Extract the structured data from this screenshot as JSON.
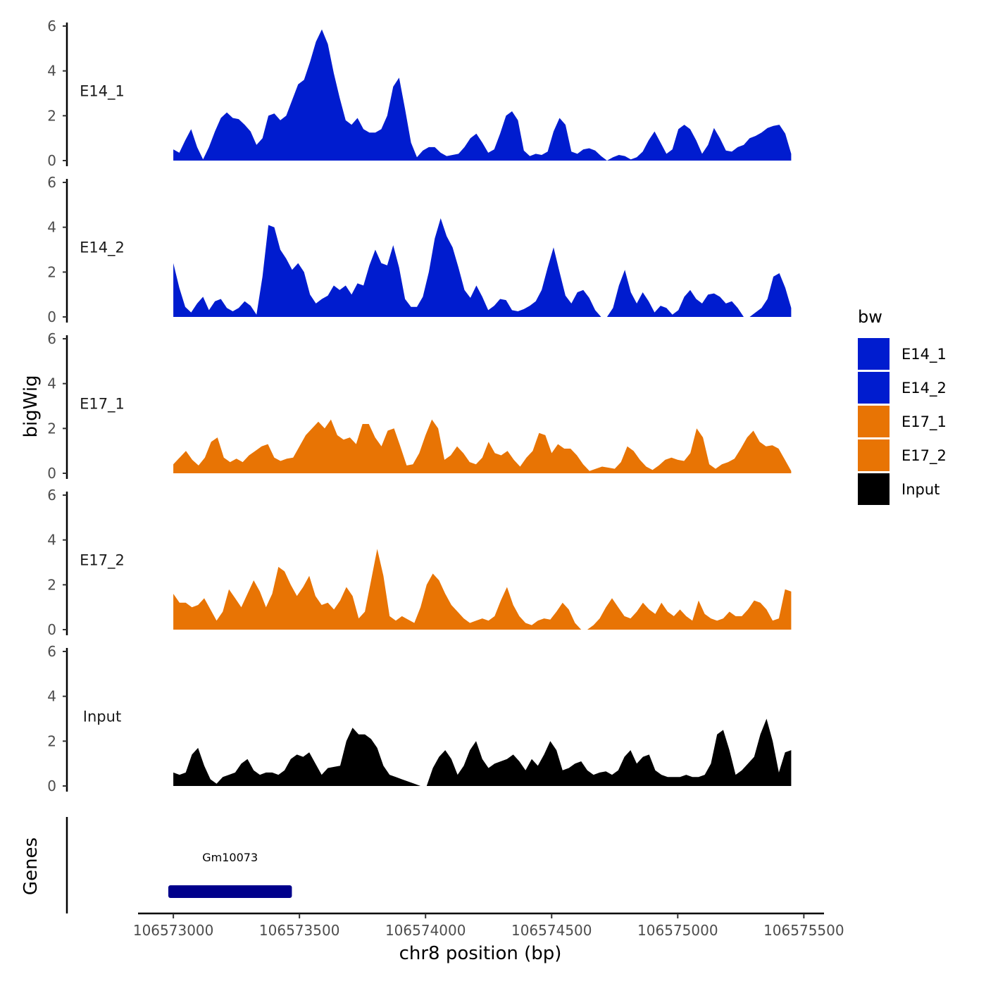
{
  "chart_data": {
    "type": "area",
    "ylabel": "bigWig",
    "xlabel": "chr8 position (bp)",
    "genes_label": "Genes",
    "xlim": [
      106572860,
      106575580
    ],
    "ylim": [
      0,
      6
    ],
    "y_ticks": [
      "0",
      "2",
      "4",
      "6"
    ],
    "x_ticks": [
      {
        "value": 106573000,
        "label": "106573000"
      },
      {
        "value": 106573500,
        "label": "106573500"
      },
      {
        "value": 106574000,
        "label": "106574000"
      },
      {
        "value": 106574500,
        "label": "106574500"
      },
      {
        "value": 106575000,
        "label": "106575000"
      },
      {
        "value": 106575500,
        "label": "106575500"
      }
    ],
    "legend": {
      "title": "bw",
      "entries": [
        {
          "name": "E14_1",
          "color": "#001ccf"
        },
        {
          "name": "E14_2",
          "color": "#001ccf"
        },
        {
          "name": "E17_1",
          "color": "#e87404"
        },
        {
          "name": "E17_2",
          "color": "#e87404"
        },
        {
          "name": "Input",
          "color": "#000000"
        }
      ]
    },
    "series": [
      {
        "name": "E14_1",
        "label": "E14_1",
        "color": "#001ccf",
        "x0": 106573000,
        "x1": 106575450,
        "values": [
          0.5,
          0.35,
          0.9,
          1.4,
          0.6,
          0.05,
          0.6,
          1.3,
          1.9,
          2.15,
          1.9,
          1.85,
          1.6,
          1.3,
          0.7,
          1.0,
          2.0,
          2.1,
          1.8,
          2.0,
          2.7,
          3.4,
          3.6,
          4.4,
          5.3,
          5.85,
          5.2,
          3.9,
          2.8,
          1.8,
          1.6,
          1.9,
          1.4,
          1.25,
          1.25,
          1.4,
          2.0,
          3.3,
          3.7,
          2.3,
          0.8,
          0.15,
          0.45,
          0.6,
          0.6,
          0.35,
          0.2,
          0.25,
          0.3,
          0.6,
          1.0,
          1.2,
          0.8,
          0.35,
          0.5,
          1.2,
          2.0,
          2.2,
          1.8,
          0.45,
          0.2,
          0.3,
          0.25,
          0.4,
          1.3,
          1.9,
          1.6,
          0.4,
          0.3,
          0.5,
          0.55,
          0.45,
          0.2,
          0,
          0.15,
          0.25,
          0.2,
          0.05,
          0.15,
          0.4,
          0.9,
          1.3,
          0.8,
          0.3,
          0.5,
          1.4,
          1.6,
          1.4,
          0.9,
          0.3,
          0.7,
          1.45,
          1.0,
          0.45,
          0.4,
          0.6,
          0.7,
          1.0,
          1.1,
          1.25,
          1.45,
          1.55,
          1.6,
          1.2,
          0.3
        ]
      },
      {
        "name": "E14_2",
        "label": "E14_2",
        "color": "#001ccf",
        "x0": 106573000,
        "x1": 106575450,
        "values": [
          2.4,
          1.3,
          0.45,
          0.2,
          0.6,
          0.9,
          0.3,
          0.7,
          0.8,
          0.4,
          0.25,
          0.4,
          0.7,
          0.5,
          0.1,
          1.8,
          4.1,
          4.0,
          3.0,
          2.6,
          2.1,
          2.4,
          2.0,
          1.0,
          0.6,
          0.8,
          0.95,
          1.4,
          1.2,
          1.4,
          1.0,
          1.5,
          1.4,
          2.3,
          3.0,
          2.4,
          2.3,
          3.2,
          2.2,
          0.8,
          0.45,
          0.45,
          0.9,
          2.0,
          3.5,
          4.4,
          3.6,
          3.1,
          2.2,
          1.2,
          0.85,
          1.4,
          0.9,
          0.3,
          0.5,
          0.8,
          0.75,
          0.3,
          0.25,
          0.35,
          0.5,
          0.7,
          1.2,
          2.2,
          3.1,
          2.0,
          0.95,
          0.6,
          1.1,
          1.2,
          0.85,
          0.3,
          0,
          0,
          0.4,
          1.4,
          2.1,
          1.1,
          0.6,
          1.1,
          0.7,
          0.2,
          0.5,
          0.4,
          0.1,
          0.3,
          0.9,
          1.2,
          0.8,
          0.6,
          1.0,
          1.05,
          0.9,
          0.6,
          0.7,
          0.4,
          0,
          0,
          0.2,
          0.4,
          0.8,
          1.8,
          1.95,
          1.3,
          0.4
        ]
      },
      {
        "name": "E17_1",
        "label": "E17_1",
        "color": "#e87404",
        "x0": 106573000,
        "x1": 106575450,
        "values": [
          0.4,
          0.7,
          1.0,
          0.6,
          0.35,
          0.7,
          1.4,
          1.6,
          0.7,
          0.5,
          0.65,
          0.5,
          0.8,
          1.0,
          1.2,
          1.3,
          0.7,
          0.55,
          0.65,
          0.7,
          1.2,
          1.7,
          2.0,
          2.3,
          2.0,
          2.4,
          1.7,
          1.5,
          1.6,
          1.3,
          2.2,
          2.2,
          1.6,
          1.2,
          1.9,
          2.0,
          1.2,
          0.35,
          0.4,
          0.9,
          1.7,
          2.4,
          2.0,
          0.6,
          0.8,
          1.2,
          0.9,
          0.5,
          0.4,
          0.7,
          1.4,
          0.9,
          0.8,
          1.0,
          0.6,
          0.3,
          0.7,
          1.0,
          1.8,
          1.7,
          0.9,
          1.3,
          1.1,
          1.1,
          0.8,
          0.4,
          0.1,
          0.2,
          0.3,
          0.25,
          0.2,
          0.5,
          1.2,
          1.0,
          0.6,
          0.3,
          0.15,
          0.35,
          0.6,
          0.7,
          0.6,
          0.55,
          0.9,
          2.0,
          1.6,
          0.4,
          0.2,
          0.4,
          0.5,
          0.65,
          1.1,
          1.6,
          1.9,
          1.4,
          1.2,
          1.25,
          1.1,
          0.6,
          0.1
        ]
      },
      {
        "name": "E17_2",
        "label": "E17_2",
        "color": "#e87404",
        "x0": 106573000,
        "x1": 106575450,
        "values": [
          1.6,
          1.2,
          1.2,
          1.0,
          1.1,
          1.4,
          0.9,
          0.4,
          0.8,
          1.8,
          1.4,
          1.0,
          1.6,
          2.2,
          1.7,
          1.0,
          1.6,
          2.8,
          2.6,
          2.0,
          1.5,
          1.9,
          2.4,
          1.5,
          1.1,
          1.2,
          0.9,
          1.3,
          1.9,
          1.5,
          0.5,
          0.8,
          2.2,
          3.6,
          2.4,
          0.6,
          0.4,
          0.6,
          0.45,
          0.3,
          1.0,
          2.0,
          2.5,
          2.2,
          1.6,
          1.1,
          0.8,
          0.5,
          0.3,
          0.4,
          0.5,
          0.4,
          0.6,
          1.3,
          1.9,
          1.1,
          0.6,
          0.3,
          0.2,
          0.4,
          0.5,
          0.45,
          0.8,
          1.2,
          0.9,
          0.3,
          0,
          0,
          0.2,
          0.5,
          1.0,
          1.4,
          1.0,
          0.6,
          0.5,
          0.8,
          1.2,
          0.9,
          0.7,
          1.2,
          0.8,
          0.6,
          0.9,
          0.6,
          0.4,
          1.3,
          0.7,
          0.5,
          0.4,
          0.5,
          0.8,
          0.6,
          0.6,
          0.9,
          1.3,
          1.2,
          0.9,
          0.4,
          0.5,
          1.8,
          1.7
        ]
      },
      {
        "name": "Input",
        "label": "Input",
        "color": "#000000",
        "x0": 106573000,
        "x1": 106575450,
        "values": [
          0.6,
          0.5,
          0.6,
          1.4,
          1.7,
          0.9,
          0.3,
          0.1,
          0.4,
          0.5,
          0.6,
          1.0,
          1.2,
          0.7,
          0.5,
          0.6,
          0.6,
          0.5,
          0.7,
          1.2,
          1.4,
          1.3,
          1.5,
          1.0,
          0.5,
          0.8,
          0.85,
          0.9,
          2.0,
          2.6,
          2.3,
          2.3,
          2.1,
          1.7,
          0.9,
          0.5,
          0.4,
          0.3,
          0.2,
          0.1,
          0,
          0,
          0.8,
          1.3,
          1.6,
          1.2,
          0.5,
          0.9,
          1.6,
          2.0,
          1.2,
          0.8,
          1.0,
          1.1,
          1.2,
          1.4,
          1.1,
          0.7,
          1.2,
          0.9,
          1.4,
          2.0,
          1.6,
          0.7,
          0.8,
          1.0,
          1.1,
          0.7,
          0.5,
          0.6,
          0.65,
          0.5,
          0.7,
          1.3,
          1.6,
          1.0,
          1.3,
          1.4,
          0.7,
          0.5,
          0.4,
          0.4,
          0.4,
          0.5,
          0.4,
          0.4,
          0.5,
          1.0,
          2.3,
          2.5,
          1.6,
          0.5,
          0.7,
          1.0,
          1.3,
          2.3,
          3.0,
          2.0,
          0.6,
          1.5,
          1.6
        ]
      }
    ],
    "genes": [
      {
        "name": "Gm10073",
        "start": 106572980,
        "end": 106573470,
        "color": "#00008b"
      }
    ]
  }
}
